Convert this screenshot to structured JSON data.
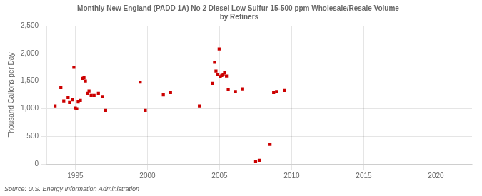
{
  "chart_data": {
    "type": "scatter",
    "title": "Monthly New England (PADD 1A) No 2 Diesel Low Sulfur 15-500 ppm Wholesale/Resale Volume\n by Refiners",
    "ylabel": "Thousand Gallons per Day",
    "annotations": [
      "Source: U.S. Energy Information Administration"
    ],
    "color": "#cc0000",
    "marker": "square",
    "grid": true,
    "xlim": [
      1993.0,
      2022.5
    ],
    "ylim": [
      0,
      2500
    ],
    "xticks": [
      1995,
      2000,
      2005,
      2010,
      2015,
      2020
    ],
    "yticks": [
      0,
      500,
      {
        "value": 1000,
        "label": "1,000"
      },
      {
        "value": 1500,
        "label": "1,500"
      },
      {
        "value": 2000,
        "label": "2,000"
      },
      {
        "value": 2500,
        "label": "2,500"
      }
    ],
    "x": [
      1993.6,
      1994.0,
      1994.2,
      1994.5,
      1994.6,
      1994.8,
      1994.9,
      1995.0,
      1995.1,
      1995.2,
      1995.35,
      1995.5,
      1995.6,
      1995.7,
      1995.85,
      1995.95,
      1996.1,
      1996.3,
      1996.6,
      1996.9,
      1997.1,
      1999.5,
      1999.85,
      2001.1,
      2001.6,
      2003.6,
      2004.5,
      2004.65,
      2004.75,
      2004.88,
      2004.97,
      2005.05,
      2005.15,
      2005.25,
      2005.35,
      2005.48,
      2005.6,
      2006.1,
      2006.6,
      2007.5,
      2007.75,
      2008.5,
      2008.75,
      2008.95,
      2009.5
    ],
    "values": [
      1050,
      1380,
      1140,
      1200,
      1110,
      1160,
      1750,
      1010,
      1000,
      1120,
      1150,
      1550,
      1560,
      1500,
      1280,
      1320,
      1240,
      1240,
      1280,
      1220,
      970,
      1480,
      970,
      1250,
      1290,
      1050,
      1460,
      1840,
      1680,
      1620,
      2080,
      1580,
      1600,
      1620,
      1650,
      1590,
      1350,
      1310,
      1360,
      45,
      70,
      355,
      1290,
      1310,
      1330
    ]
  }
}
